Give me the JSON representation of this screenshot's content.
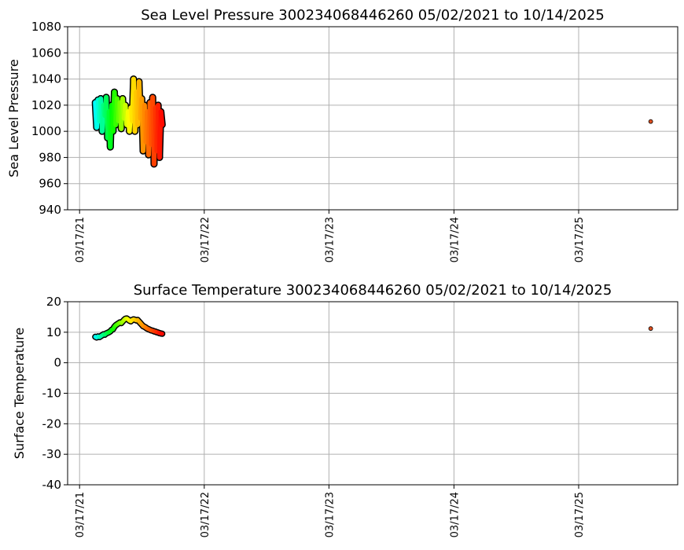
{
  "chart_data": [
    {
      "type": "scatter",
      "title": "Sea Level Pressure 300234068446260  05/02/2021 to 10/14/2025",
      "xlabel": "",
      "ylabel": "Sea Level Pressure",
      "ylim": [
        940,
        1080
      ],
      "yticks": [
        940,
        960,
        980,
        1000,
        1020,
        1040,
        1060,
        1080
      ],
      "xlim": [
        "2021-02-10",
        "2026-01-01"
      ],
      "xticks": [
        "2021-03-17",
        "2022-03-17",
        "2023-03-17",
        "2024-03-17",
        "2025-03-17"
      ],
      "xtick_labels": [
        "03/17/21",
        "03/17/22",
        "03/17/23",
        "03/17/24",
        "03/17/25"
      ],
      "grid": true,
      "series_start": "2021-05-02",
      "series_step_days": 4,
      "values": [
        1022,
        1003,
        1024,
        1008,
        1025,
        1000,
        1020,
        1012,
        1026,
        995,
        1015,
        988,
        1020,
        1000,
        1030,
        1005,
        1025,
        1008,
        1022,
        1002,
        1025,
        1010,
        1020,
        1005,
        1015,
        1000,
        1018,
        1008,
        1040,
        1000,
        1030,
        1005,
        1038,
        1010,
        1025,
        985,
        1020,
        992,
        1015,
        982,
        1022,
        990,
        1026,
        975,
        1018,
        985,
        1020,
        980,
        1015,
        1005
      ],
      "last_point": {
        "date": "2025-10-14",
        "value": 1007.5
      }
    },
    {
      "type": "scatter",
      "title": "Surface Temperature 300234068446260  05/02/2021 to 10/14/2025",
      "xlabel": "",
      "ylabel": "Surface Temperature",
      "ylim": [
        -40,
        20
      ],
      "yticks": [
        -40,
        -30,
        -20,
        -10,
        0,
        10,
        20
      ],
      "xlim": [
        "2021-02-10",
        "2026-01-01"
      ],
      "xticks": [
        "2021-03-17",
        "2022-03-17",
        "2023-03-17",
        "2024-03-17",
        "2025-03-17"
      ],
      "xtick_labels": [
        "03/17/21",
        "03/17/22",
        "03/17/23",
        "03/17/24",
        "03/17/25"
      ],
      "grid": true,
      "series_start": "2021-05-02",
      "series_step_days": 4,
      "values": [
        8.5,
        8.3,
        8.6,
        8.4,
        8.7,
        9.0,
        9.3,
        9.2,
        9.6,
        9.8,
        10.0,
        10.3,
        10.8,
        11.0,
        11.8,
        12.3,
        12.6,
        12.9,
        13.2,
        13.0,
        13.5,
        14.0,
        14.4,
        14.5,
        14.2,
        13.8,
        13.6,
        14.0,
        14.2,
        14.1,
        13.9,
        14.0,
        13.5,
        13.0,
        12.5,
        12.0,
        11.8,
        11.5,
        11.2,
        11.0,
        10.8,
        10.6,
        10.5,
        10.3,
        10.2,
        10.0,
        9.9,
        9.7,
        9.6,
        9.5
      ],
      "last_point": {
        "date": "2025-10-14",
        "value": 11.2
      }
    }
  ],
  "colormap": [
    "#00ffff",
    "#00ff00",
    "#ffff00",
    "#ff8000",
    "#ff0000"
  ]
}
